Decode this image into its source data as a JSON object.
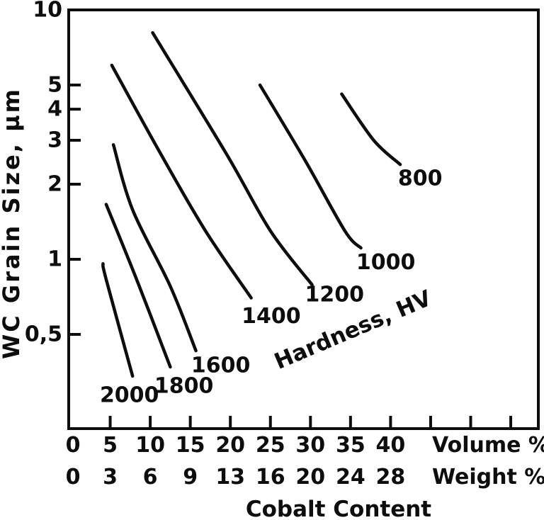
{
  "page": {
    "background_color": "#ffffff",
    "ink_color": "#0d0d0d"
  },
  "chart_data": {
    "type": "line",
    "subtype": "contour-map",
    "title": "",
    "xlabel": "Cobalt Content",
    "ylabel": "WC Grain Size, µm",
    "x_axis": {
      "primary_row_name": "Volume %",
      "secondary_row_name": "Weight %",
      "volume_tick_values": [
        0,
        5,
        10,
        15,
        20,
        25,
        30,
        35,
        40
      ],
      "volume_tick_labels": [
        "0",
        "5",
        "10",
        "15",
        "20",
        "25",
        "30",
        "35",
        "40"
      ],
      "unlabeled_volume_ticks": [
        45,
        50,
        55
      ],
      "weight_tick_labels": [
        "0",
        "3",
        "6",
        "9",
        "13",
        "16",
        "20",
        "24",
        "28"
      ],
      "xlim_volume": [
        -0.2,
        58.5
      ],
      "grid": false
    },
    "y_axis": {
      "scale": "log",
      "tick_values": [
        10,
        5,
        4,
        3,
        2,
        1,
        0.5
      ],
      "tick_labels": [
        "10",
        "5",
        "4",
        "3",
        "2",
        "1",
        "0,5"
      ],
      "ylim": [
        0.21,
        10
      ],
      "grid": false
    },
    "annotation": {
      "text": "Hardness, HV",
      "vol": 35.3,
      "grain_size": 0.52,
      "angle_deg": -23
    },
    "legend": "none",
    "series": [
      {
        "hardness": 2000,
        "label": "2000",
        "points": [
          [
            4.1,
            0.96
          ],
          [
            4.5,
            0.83
          ],
          [
            7.8,
            0.34
          ]
        ],
        "label_at": [
          7.4,
          0.285
        ]
      },
      {
        "hardness": 1800,
        "label": "1800",
        "points": [
          [
            4.5,
            1.66
          ],
          [
            8.3,
            0.83
          ],
          [
            12.5,
            0.37
          ]
        ],
        "label_at": [
          14.2,
          0.31
        ]
      },
      {
        "hardness": 1600,
        "label": "1600",
        "points": [
          [
            5.4,
            2.88
          ],
          [
            7.8,
            1.58
          ],
          [
            12.5,
            0.78
          ],
          [
            15.7,
            0.43
          ]
        ],
        "label_at": [
          18.8,
          0.375
        ]
      },
      {
        "hardness": 1400,
        "label": "1400",
        "points": [
          [
            5.2,
            6.0
          ],
          [
            11.3,
            2.65
          ],
          [
            16.9,
            1.3
          ],
          [
            22.6,
            0.7
          ]
        ],
        "label_at": [
          25.1,
          0.59
        ]
      },
      {
        "hardness": 1200,
        "label": "1200",
        "points": [
          [
            10.3,
            8.1
          ],
          [
            19.5,
            2.65
          ],
          [
            25.0,
            1.3
          ],
          [
            30.2,
            0.79
          ]
        ],
        "label_at": [
          33.0,
          0.72
        ]
      },
      {
        "hardness": 1000,
        "label": "1000",
        "points": [
          [
            23.7,
            5.0
          ],
          [
            29.3,
            2.5
          ],
          [
            34.3,
            1.3
          ],
          [
            36.3,
            1.11
          ]
        ],
        "label_at": [
          39.4,
          0.97
        ]
      },
      {
        "hardness": 800,
        "label": "800",
        "points": [
          [
            33.9,
            4.6
          ],
          [
            37.9,
            3.0
          ],
          [
            41.2,
            2.4
          ]
        ],
        "label_at": [
          43.7,
          2.11
        ]
      }
    ]
  }
}
